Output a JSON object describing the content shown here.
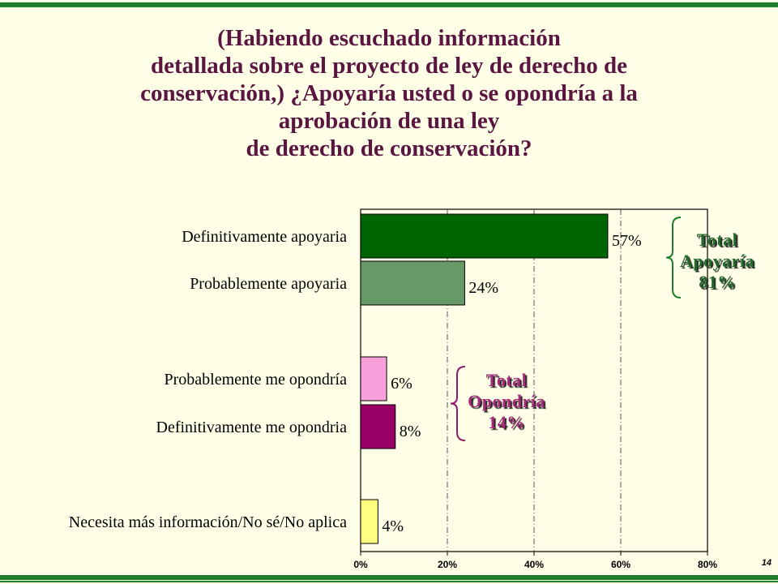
{
  "title_lines": [
    "(Habiendo escuchado información",
    "detallada sobre el proyecto de ley de derecho de",
    "conservación,) ¿Apoyaría usted o se opondría a la",
    "aprobación de una ley",
    "de derecho de conservación?"
  ],
  "page_number": "14",
  "colors": {
    "background": "#FFFFE8",
    "rule": "#1E7D2B",
    "title": "#5A1540",
    "support_brace": "#1E7D2B",
    "oppose_brace": "#8E1B6A"
  },
  "groups": {
    "support": {
      "line1": "Total",
      "line2": "Apoyaría",
      "line3": "81%"
    },
    "oppose": {
      "line1": "Total",
      "line2": "Opondría",
      "line3": "14%"
    }
  },
  "chart_data": {
    "type": "bar",
    "orientation": "horizontal",
    "categories": [
      "Definitivamente apoyaria",
      "Probablemente apoyaria",
      "Probablemente me opondría",
      "Definitivamente me opondria",
      "Necesita más información/No sé/No aplica"
    ],
    "values": [
      57,
      24,
      6,
      8,
      4
    ],
    "data_labels": [
      "57%",
      "24%",
      "6%",
      "8%",
      "4%"
    ],
    "bar_colors": [
      "#006400",
      "#669966",
      "#F8A0DC",
      "#990066",
      "#FFFF80"
    ],
    "xlim": [
      0,
      80
    ],
    "xticks": [
      0,
      20,
      40,
      60,
      80
    ],
    "xtick_labels": [
      "0%",
      "20%",
      "40%",
      "60%",
      "80%"
    ],
    "grid": "vertical dash-dot"
  }
}
